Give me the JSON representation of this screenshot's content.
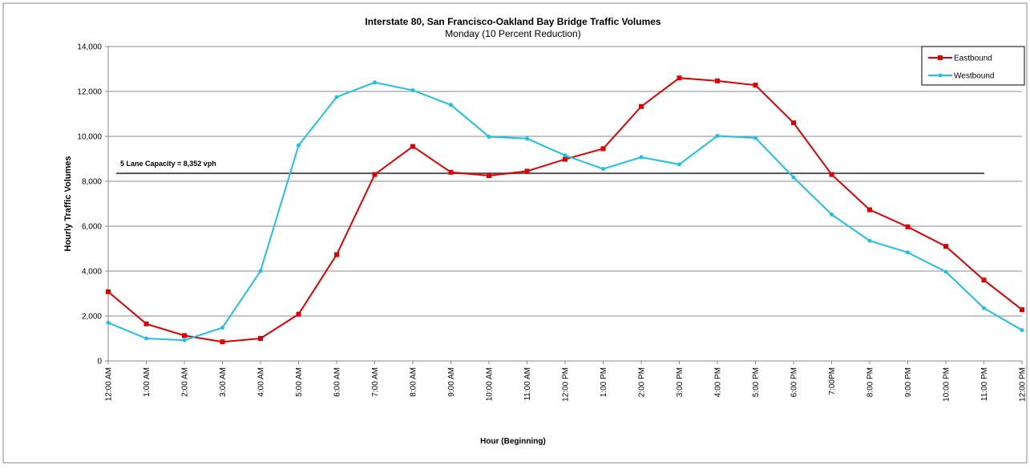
{
  "chart_data": {
    "type": "line",
    "title": "Interstate 80, San Francisco-Oakland Bay Bridge Traffic Volumes",
    "subtitle": "Monday (10 Percent Reduction)",
    "x_label": "Hour (Beginning)",
    "y_label": "Hourly Traffic Volumes",
    "categories": [
      "12:00 AM",
      "1:00 AM",
      "2:00 AM",
      "3:00 AM",
      "4:00 AM",
      "5:00 AM",
      "6:00 AM",
      "7:00 AM",
      "8:00 AM",
      "9:00 AM",
      "10:00 AM",
      "11:00 AM",
      "12:00 PM",
      "1:00 PM",
      "2:00 PM",
      "3:00 PM",
      "4:00 PM",
      "5:00 PM",
      "6:00 PM",
      "7:00PM",
      "8:00 PM",
      "9:00 PM",
      "10:00 PM",
      "11:00 PM",
      "12:00 PM"
    ],
    "series": [
      {
        "name": "Eastbound",
        "color": "#e00000",
        "marker": "square",
        "values": [
          3080,
          1650,
          1130,
          850,
          1000,
          2080,
          4730,
          8300,
          9550,
          8400,
          8250,
          8450,
          8980,
          9450,
          11330,
          12600,
          12470,
          12280,
          10600,
          8300,
          6730,
          5970,
          5100,
          3600,
          2280
        ]
      },
      {
        "name": "Westbound",
        "color": "#1ec0ea",
        "marker": "circle",
        "values": [
          1700,
          1000,
          920,
          1480,
          4000,
          9600,
          11750,
          12400,
          12050,
          11400,
          9980,
          9900,
          9150,
          8550,
          9070,
          8750,
          10020,
          9930,
          8170,
          6520,
          5350,
          4830,
          3970,
          2350,
          1370
        ]
      }
    ],
    "capacity": {
      "label": "5 Lane Capacity = 8,352 vph",
      "value": 8352,
      "color": "#555555"
    },
    "ylim": [
      0,
      14000
    ],
    "yticks": [
      0,
      {
        "value": 2000,
        "label": "2,000"
      },
      {
        "value": 4000,
        "label": "4,000"
      },
      {
        "value": 6000,
        "label": "6,000"
      },
      {
        "value": 8000,
        "label": "8,000"
      },
      {
        "value": 10000,
        "label": "10,000"
      },
      {
        "value": 12000,
        "label": "12,000"
      },
      {
        "value": 14000,
        "label": "14,000"
      }
    ],
    "grid": true,
    "legend": "top-right"
  }
}
